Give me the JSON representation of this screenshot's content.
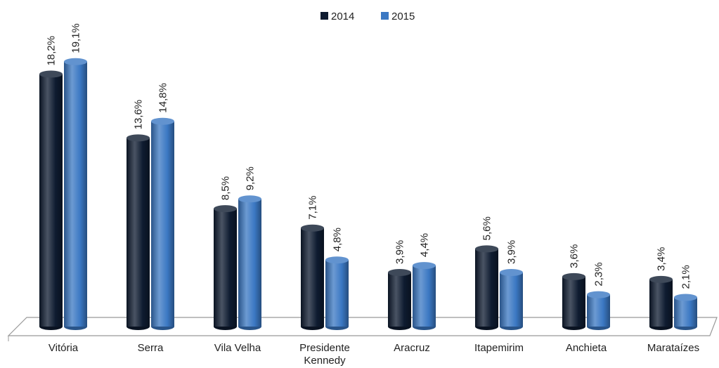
{
  "chart_data": {
    "type": "bar",
    "categories": [
      "Vitória",
      "Serra",
      "Vila Velha",
      "Presidente Kennedy",
      "Aracruz",
      "Itapemirim",
      "Anchieta",
      "Marataízes"
    ],
    "series": [
      {
        "name": "2014",
        "color": "#0e1b30",
        "values": [
          18.2,
          13.6,
          8.5,
          7.1,
          3.9,
          5.6,
          3.6,
          3.4
        ],
        "value_labels": [
          "18,2%",
          "13,6%",
          "8,5%",
          "7,1%",
          "3,9%",
          "5,6%",
          "3,6%",
          "3,4%"
        ]
      },
      {
        "name": "2015",
        "color": "#3b78c3",
        "values": [
          19.1,
          14.8,
          9.2,
          4.8,
          4.4,
          3.9,
          2.3,
          2.1
        ],
        "value_labels": [
          "19,1%",
          "14,8%",
          "9,2%",
          "4,8%",
          "4,4%",
          "3,9%",
          "2,3%",
          "2,1%"
        ]
      }
    ],
    "legend": "top"
  }
}
